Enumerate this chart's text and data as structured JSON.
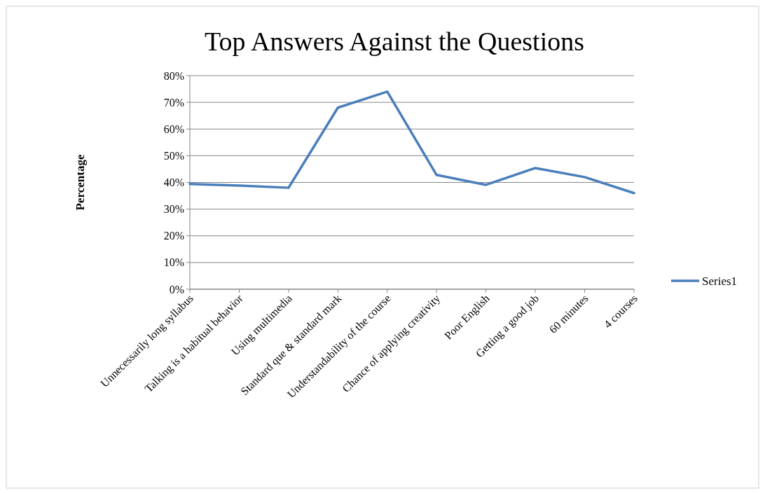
{
  "chart_data": {
    "type": "line",
    "title": "Top Answers Against the Questions",
    "ylabel": "Percentage",
    "categories": [
      "Unnecessarily long syllabus",
      "Talking is a  habitual behavior",
      "Using multimedia",
      "Standard que & standard mark",
      "Understandability of the course",
      "Chance of applying creativity",
      "Poor English",
      "Getting a good job",
      "60 minutes",
      "4 courses"
    ],
    "series": [
      {
        "name": "Series1",
        "color": "#4a7ebb",
        "values": [
          39.4,
          38.8,
          38,
          68,
          74,
          42.8,
          39.1,
          45.4,
          42,
          36
        ]
      }
    ],
    "ylim": [
      0,
      80
    ],
    "yticks": [
      {
        "value": 0,
        "label": "0%"
      },
      {
        "value": 10,
        "label": "10%"
      },
      {
        "value": 20,
        "label": "20%"
      },
      {
        "value": 30,
        "label": "30%"
      },
      {
        "value": 40,
        "label": "40%"
      },
      {
        "value": 50,
        "label": "50%"
      },
      {
        "value": 60,
        "label": "60%"
      },
      {
        "value": 70,
        "label": "70%"
      },
      {
        "value": 80,
        "label": "80%"
      }
    ],
    "grid": "y",
    "legend": "right",
    "marker": "none",
    "line_style": "solid"
  }
}
